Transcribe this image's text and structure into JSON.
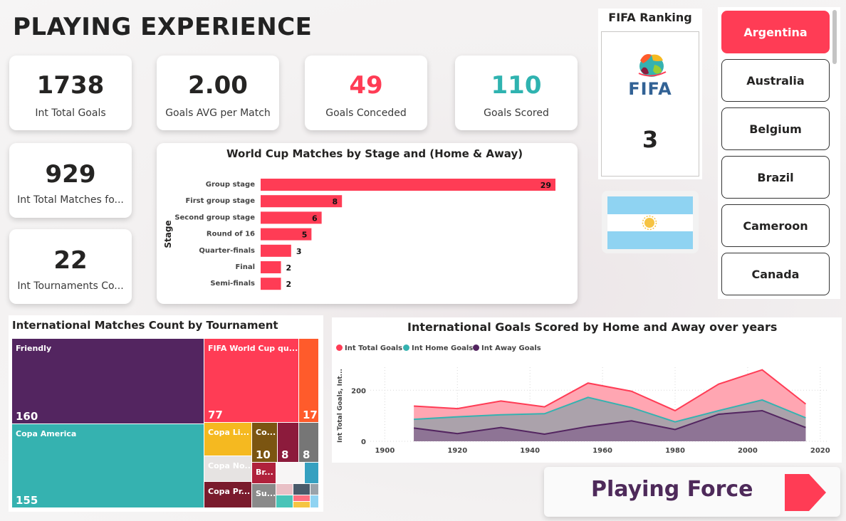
{
  "page_title": "PLAYING EXPERIENCE",
  "kpis": [
    {
      "value": "1738",
      "label": "Int Total Goals",
      "color": "#252423"
    },
    {
      "value": "2.00",
      "label": "Goals AVG per Match",
      "color": "#252423"
    },
    {
      "value": "49",
      "label": "Goals Conceded",
      "color": "#ff3c55"
    },
    {
      "value": "110",
      "label": "Goals Scored",
      "color": "#2fb3b0"
    },
    {
      "value": "929",
      "label": "Int Total Matches fo...",
      "color": "#252423"
    },
    {
      "value": "22",
      "label": "Int Tournaments Co...",
      "color": "#252423"
    }
  ],
  "ranking": {
    "title": "FIFA Ranking",
    "logo_text": "FIFA",
    "value": "3"
  },
  "slicer": {
    "items": [
      {
        "label": "Argentina",
        "active": true
      },
      {
        "label": "Australia",
        "active": false
      },
      {
        "label": "Belgium",
        "active": false
      },
      {
        "label": "Brazil",
        "active": false
      },
      {
        "label": "Cameroon",
        "active": false
      },
      {
        "label": "Canada",
        "active": false
      }
    ]
  },
  "playing_force": {
    "label": "Playing Force",
    "icon": "arrow-right-icon"
  },
  "chart_data": [
    {
      "type": "bar",
      "orientation": "horizontal",
      "title": "World Cup Matches by Stage and (Home & Away)",
      "ylabel": "Stage",
      "xlabel": "",
      "categories": [
        "Group stage",
        "First group stage",
        "Second group stage",
        "Round of 16",
        "Quarter-finals",
        "Final",
        "Semi-finals"
      ],
      "values": [
        29,
        8,
        6,
        5,
        3,
        2,
        2
      ],
      "color": "#ff3c55",
      "xlim": [
        0,
        29
      ]
    },
    {
      "type": "treemap",
      "title": "International Matches Count by Tournament",
      "items": [
        {
          "label": "Friendly",
          "value": 160,
          "color": "#532560"
        },
        {
          "label": "Copa America",
          "value": 155,
          "color": "#35b2b0"
        },
        {
          "label": "FIFA World Cup qu...",
          "value": 77,
          "color": "#ff3c55"
        },
        {
          "label": "",
          "value": 17,
          "value_label": "17",
          "color": "#ff5b2b"
        },
        {
          "label": "Copa Li...",
          "value": null,
          "color": "#f5b920"
        },
        {
          "label": "Co...",
          "value": 10,
          "color": "#7b5511"
        },
        {
          "label": "",
          "value": 8,
          "color": "#8c1b3c"
        },
        {
          "label": "",
          "value": 8,
          "color": "#767676"
        },
        {
          "label": "Copa No...",
          "value": null,
          "color": "#e6e3e2"
        },
        {
          "label": "Br...",
          "value": null,
          "color": "#b0213c"
        },
        {
          "label": "Copa Pr...",
          "value": null,
          "color": "#7a1b2d"
        },
        {
          "label": "Su...",
          "value": null,
          "color": "#8a8a8a"
        }
      ]
    },
    {
      "type": "area",
      "title": "International Goals Scored by Home and Away over years",
      "xlabel": "",
      "ylabel": "Int Total Goals, Int...",
      "x": [
        1908,
        1920,
        1932,
        1944,
        1956,
        1968,
        1980,
        1992,
        2004,
        2016
      ],
      "xticks": [
        1900,
        1920,
        1940,
        1960,
        1980,
        2000,
        2020
      ],
      "yticks": [
        0,
        200
      ],
      "ylim": [
        0,
        290
      ],
      "xlim": [
        1896,
        2022
      ],
      "series": [
        {
          "name": "Int Total Goals",
          "color": "#ff3c55",
          "values": [
            138,
            128,
            158,
            135,
            228,
            196,
            120,
            224,
            280,
            146
          ]
        },
        {
          "name": "Int Home Goals",
          "color": "#35b2b0",
          "values": [
            86,
            96,
            104,
            108,
            172,
            132,
            76,
            120,
            162,
            92
          ]
        },
        {
          "name": "Int Away Goals",
          "color": "#532560",
          "values": [
            52,
            30,
            54,
            28,
            58,
            80,
            46,
            106,
            120,
            54
          ]
        }
      ],
      "grid": true,
      "legend": "top-left"
    }
  ]
}
